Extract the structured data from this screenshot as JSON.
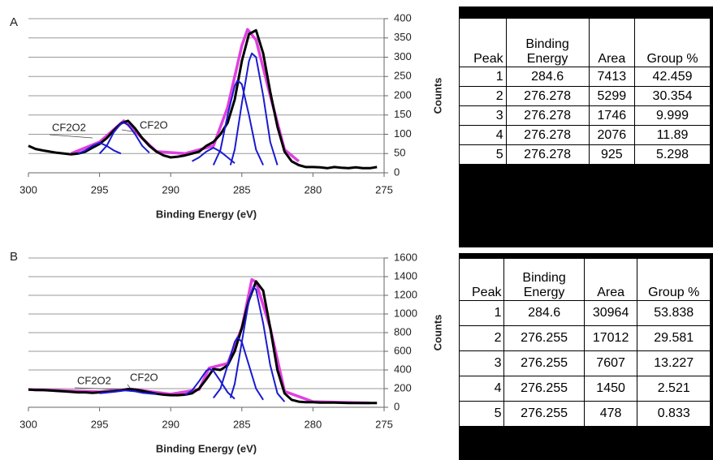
{
  "chart_data": [
    {
      "type": "line",
      "panel_label": "A",
      "xlabel": "Binding Energy (eV)",
      "ylabel": "Counts",
      "xlim": [
        300,
        275
      ],
      "xticks": [
        300,
        295,
        290,
        285,
        280,
        275
      ],
      "ylim": [
        0,
        400
      ],
      "yticks": [
        0,
        50,
        100,
        150,
        200,
        250,
        300,
        350,
        400
      ],
      "grid": true,
      "annotations": [
        "CF2O2",
        "CF2O"
      ],
      "series": [
        {
          "color": "#e040e0",
          "x": [
            297,
            295,
            293.3,
            291,
            289,
            287,
            286,
            285,
            284.6,
            284,
            283,
            282,
            281
          ],
          "values": [
            50,
            80,
            135,
            55,
            50,
            70,
            170,
            330,
            372,
            345,
            200,
            60,
            30
          ]
        },
        {
          "color": "#000000",
          "x": [
            300,
            299.5,
            299,
            298.5,
            298,
            297.5,
            297,
            296.5,
            296,
            295.5,
            295,
            294.5,
            294,
            293.5,
            293,
            292.5,
            292,
            291.5,
            291,
            290.5,
            290,
            289.5,
            289,
            288.5,
            288,
            287.5,
            287,
            286.5,
            286,
            285.5,
            285,
            284.5,
            284,
            283.5,
            283,
            282.5,
            282,
            281.5,
            281,
            280.5,
            280,
            279.5,
            279,
            278.5,
            278,
            277.5,
            277,
            276.5,
            276,
            275.5
          ],
          "values": [
            70,
            62,
            58,
            55,
            52,
            50,
            48,
            50,
            55,
            65,
            75,
            90,
            110,
            128,
            135,
            115,
            90,
            70,
            55,
            45,
            40,
            42,
            45,
            50,
            55,
            70,
            80,
            100,
            130,
            190,
            290,
            360,
            370,
            310,
            210,
            120,
            55,
            30,
            20,
            15,
            15,
            14,
            12,
            15,
            13,
            12,
            14,
            12,
            12,
            15
          ]
        },
        {
          "color": "#1a1ad0",
          "x": [
            296.5,
            296,
            295.5,
            295,
            294.5,
            294,
            293.5
          ],
          "values": [
            50,
            58,
            70,
            78,
            70,
            58,
            50
          ]
        },
        {
          "color": "#1a1ad0",
          "x": [
            295,
            294.5,
            294,
            293.5,
            293.3,
            293,
            292.5,
            292,
            291.5
          ],
          "values": [
            50,
            70,
            105,
            128,
            130,
            125,
            100,
            70,
            52
          ]
        },
        {
          "color": "#1a1ad0",
          "x": [
            288.5,
            288,
            287.5,
            287,
            286.5,
            286,
            285.5
          ],
          "values": [
            30,
            40,
            55,
            65,
            55,
            40,
            25
          ]
        },
        {
          "color": "#1a1ad0",
          "x": [
            287,
            286.5,
            286,
            285.5,
            285.3,
            285,
            284.5,
            284,
            283.5
          ],
          "values": [
            20,
            60,
            150,
            225,
            240,
            230,
            150,
            60,
            20
          ]
        },
        {
          "color": "#1a1ad0",
          "x": [
            285.8,
            285.5,
            285,
            284.5,
            284.3,
            284,
            283.5,
            283,
            282.5
          ],
          "values": [
            20,
            60,
            180,
            290,
            310,
            300,
            200,
            80,
            20
          ]
        }
      ]
    },
    {
      "type": "line",
      "panel_label": "B",
      "xlabel": "Binding Energy (eV)",
      "ylabel": "Counts",
      "xlim": [
        300,
        275
      ],
      "xticks": [
        300,
        295,
        290,
        285,
        280,
        275
      ],
      "ylim": [
        0,
        1600
      ],
      "yticks": [
        0,
        200,
        400,
        600,
        800,
        1000,
        1200,
        1400,
        1600
      ],
      "grid": true,
      "annotations": [
        "CF2O2",
        "CF2O"
      ],
      "series": [
        {
          "color": "#e040e0",
          "x": [
            300,
            295,
            292.8,
            290,
            288,
            287.3,
            286,
            285,
            284.3,
            284,
            283,
            282,
            280,
            276
          ],
          "values": [
            190,
            165,
            195,
            140,
            190,
            420,
            470,
            850,
            1370,
            1340,
            850,
            170,
            60,
            45
          ]
        },
        {
          "color": "#000000",
          "x": [
            300,
            299.5,
            299,
            298.5,
            298,
            297.5,
            297,
            296.5,
            296,
            295.5,
            295,
            294.5,
            294,
            293.5,
            293,
            292.5,
            292,
            291.5,
            291,
            290.5,
            290,
            289.5,
            289,
            288.5,
            288,
            287.5,
            287,
            286.5,
            286,
            285.5,
            285,
            284.5,
            284,
            283.5,
            283,
            282.5,
            282,
            281.5,
            281,
            280.5,
            280,
            279.5,
            279,
            278.5,
            278,
            277.5,
            277,
            276.5,
            276,
            275.5
          ],
          "values": [
            190,
            185,
            185,
            180,
            175,
            170,
            165,
            160,
            160,
            155,
            160,
            165,
            170,
            180,
            195,
            190,
            175,
            160,
            145,
            135,
            130,
            130,
            135,
            150,
            200,
            300,
            410,
            400,
            450,
            600,
            850,
            1150,
            1350,
            1250,
            850,
            400,
            150,
            80,
            60,
            55,
            55,
            50,
            50,
            50,
            48,
            45,
            45,
            45,
            45,
            45
          ]
        },
        {
          "color": "#1a1ad0",
          "x": [
            295,
            294,
            293.2,
            292.5,
            292,
            291
          ],
          "values": [
            150,
            165,
            180,
            170,
            155,
            140
          ]
        },
        {
          "color": "#1a1ad0",
          "x": [
            289,
            288.5,
            288,
            287.5,
            287.3,
            287,
            286.5,
            286,
            285.5
          ],
          "values": [
            130,
            180,
            280,
            390,
            410,
            390,
            280,
            160,
            90
          ]
        },
        {
          "color": "#1a1ad0",
          "x": [
            287,
            286.5,
            286,
            285.5,
            285.3,
            285,
            284.5,
            284,
            283.5
          ],
          "values": [
            100,
            200,
            450,
            700,
            750,
            700,
            450,
            200,
            80
          ]
        },
        {
          "color": "#1a1ad0",
          "x": [
            285.8,
            285.5,
            285,
            284.5,
            284.2,
            284,
            283.5,
            283,
            282.5,
            282
          ],
          "values": [
            100,
            250,
            700,
            1150,
            1290,
            1260,
            900,
            450,
            150,
            60
          ]
        }
      ]
    }
  ],
  "tables": [
    {
      "header": [
        "Peak",
        "Binding Energy",
        "Area",
        "Group %"
      ],
      "rows": [
        [
          1,
          284.6,
          7413,
          42.459
        ],
        [
          2,
          276.278,
          5299,
          30.354
        ],
        [
          3,
          276.278,
          1746,
          9.999
        ],
        [
          4,
          276.278,
          2076,
          11.89
        ],
        [
          5,
          276.278,
          925,
          5.298
        ]
      ]
    },
    {
      "header": [
        "Peak",
        "Binding Energy",
        "Area",
        "Group %"
      ],
      "rows": [
        [
          1,
          284.6,
          30964,
          53.838
        ],
        [
          2,
          276.255,
          17012,
          29.581
        ],
        [
          3,
          276.255,
          7607,
          13.227
        ],
        [
          4,
          276.255,
          1450,
          2.521
        ],
        [
          5,
          276.255,
          478,
          0.833
        ]
      ]
    }
  ]
}
